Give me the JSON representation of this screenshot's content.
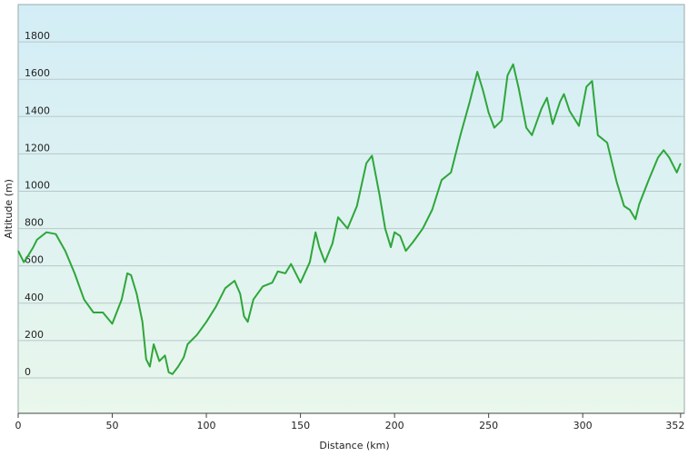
{
  "chart_data": {
    "type": "line",
    "xlabel": "Distance  (km)",
    "ylabel": "Altitude (m)",
    "x": [
      0,
      3,
      5,
      8,
      10,
      15,
      20,
      25,
      30,
      35,
      40,
      45,
      50,
      55,
      58,
      60,
      63,
      66,
      68,
      70,
      72,
      75,
      78,
      80,
      82,
      85,
      88,
      90,
      95,
      100,
      105,
      110,
      115,
      118,
      120,
      122,
      125,
      130,
      135,
      138,
      142,
      145,
      150,
      155,
      158,
      160,
      163,
      167,
      170,
      175,
      180,
      185,
      188,
      192,
      195,
      198,
      200,
      203,
      206,
      210,
      215,
      220,
      225,
      230,
      235,
      240,
      244,
      247,
      250,
      253,
      257,
      260,
      263,
      266,
      270,
      273,
      278,
      281,
      284,
      288,
      290,
      293,
      298,
      302,
      305,
      308,
      313,
      318,
      322,
      325,
      328,
      330,
      335,
      340,
      343,
      346,
      350,
      352
    ],
    "series": [
      {
        "name": "Altitude",
        "color": "#2ea63a",
        "values": [
          680,
          620,
          650,
          700,
          740,
          780,
          770,
          680,
          560,
          420,
          350,
          350,
          290,
          420,
          560,
          550,
          450,
          300,
          100,
          60,
          180,
          90,
          120,
          30,
          20,
          60,
          110,
          180,
          230,
          300,
          380,
          480,
          520,
          450,
          330,
          300,
          420,
          490,
          510,
          570,
          560,
          610,
          510,
          620,
          780,
          700,
          620,
          720,
          860,
          800,
          920,
          1150,
          1190,
          980,
          800,
          700,
          780,
          760,
          680,
          730,
          800,
          900,
          1060,
          1100,
          1300,
          1480,
          1640,
          1540,
          1420,
          1340,
          1380,
          1620,
          1680,
          1550,
          1340,
          1300,
          1440,
          1500,
          1360,
          1480,
          1520,
          1430,
          1350,
          1560,
          1590,
          1300,
          1260,
          1050,
          920,
          900,
          850,
          930,
          1060,
          1180,
          1220,
          1180,
          1100,
          1150
        ]
      }
    ],
    "xlim": [
      0,
      354
    ],
    "xticks": [
      0,
      50,
      100,
      150,
      200,
      250,
      300,
      352
    ],
    "ylim": [
      -190,
      2000
    ],
    "yticks": [
      0,
      200,
      400,
      600,
      800,
      1000,
      1200,
      1400,
      1600,
      1800
    ],
    "grid": true
  }
}
